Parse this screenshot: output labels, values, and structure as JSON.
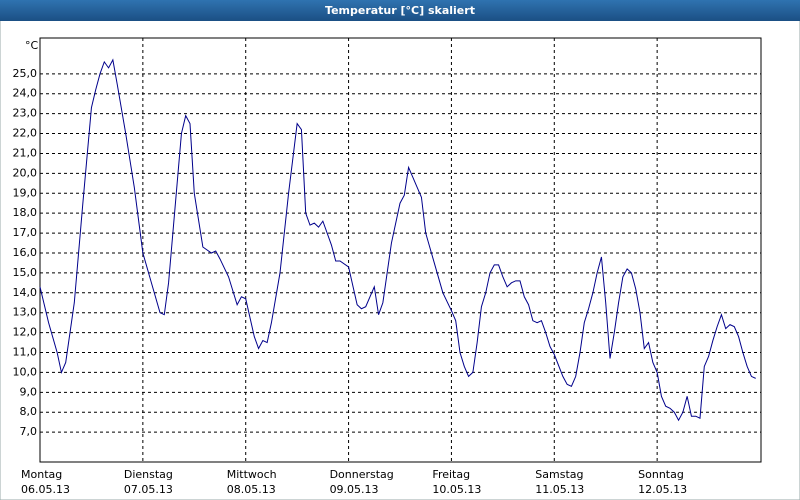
{
  "chart_data": {
    "type": "line",
    "title": "Temperatur [°C] skaliert",
    "y_label": "°C",
    "x": [
      0,
      2,
      4,
      5,
      6,
      8,
      10,
      12,
      13,
      14,
      15,
      16,
      17,
      18,
      20,
      22,
      24,
      26,
      28,
      29,
      30,
      32,
      33,
      34,
      35,
      36,
      38,
      40,
      41,
      42,
      44,
      46,
      47,
      48,
      50,
      51,
      52,
      53,
      54,
      56,
      58,
      60,
      61,
      62,
      63,
      64,
      65,
      66,
      68,
      69,
      70,
      72,
      74,
      75,
      76,
      78,
      79,
      80,
      82,
      84,
      85,
      86,
      87,
      88,
      89,
      90,
      92,
      94,
      96,
      97,
      98,
      99,
      100,
      101,
      102,
      103,
      104,
      105,
      106,
      107,
      108,
      109,
      110,
      111,
      112,
      113,
      114,
      115,
      116,
      117,
      118,
      119,
      120,
      122,
      123,
      124,
      125,
      126,
      127,
      128,
      129,
      130,
      131,
      132,
      133,
      134,
      135,
      136,
      137,
      138,
      139,
      140,
      141,
      142,
      143,
      144,
      145,
      146,
      147,
      148,
      149,
      150,
      151,
      152,
      153,
      154,
      155,
      156,
      157,
      158,
      159,
      160,
      161,
      162,
      163,
      164,
      165,
      166,
      167
    ],
    "values": [
      14.3,
      12.5,
      11.0,
      10.0,
      10.5,
      13.5,
      18.5,
      23.3,
      24.2,
      25.0,
      25.6,
      25.3,
      25.7,
      24.5,
      22.0,
      19.3,
      16.0,
      14.5,
      13.0,
      12.9,
      14.5,
      19.5,
      22.0,
      22.9,
      22.5,
      19.0,
      16.3,
      16.0,
      16.1,
      15.7,
      14.8,
      13.4,
      13.8,
      13.7,
      11.8,
      11.2,
      11.6,
      11.5,
      12.5,
      15.0,
      19.0,
      22.5,
      22.2,
      18.0,
      17.4,
      17.5,
      17.3,
      17.6,
      16.4,
      15.6,
      15.6,
      15.3,
      13.4,
      13.2,
      13.3,
      14.3,
      12.9,
      13.5,
      16.5,
      18.5,
      18.9,
      20.3,
      19.8,
      19.3,
      18.8,
      17.0,
      15.5,
      14.0,
      13.1,
      12.6,
      11.0,
      10.3,
      9.8,
      10.0,
      11.5,
      13.3,
      14.0,
      15.0,
      15.4,
      15.4,
      14.8,
      14.3,
      14.5,
      14.6,
      14.6,
      13.8,
      13.4,
      12.6,
      12.5,
      12.6,
      12.0,
      11.3,
      10.9,
      9.8,
      9.4,
      9.3,
      9.8,
      11.0,
      12.5,
      13.2,
      14.0,
      15.0,
      15.8,
      13.5,
      10.7,
      12.0,
      13.5,
      14.8,
      15.2,
      15.0,
      14.2,
      13.0,
      11.2,
      11.5,
      10.5,
      10.0,
      8.8,
      8.3,
      8.2,
      8.0,
      7.6,
      8.0,
      8.8,
      7.8,
      7.8,
      7.7,
      10.3,
      10.8,
      11.6,
      12.3,
      12.9,
      12.2,
      12.4,
      12.3,
      11.8,
      11.0,
      10.3,
      9.8,
      9.7
    ],
    "color": "#00008b",
    "grid": true,
    "xlim": [
      0,
      168
    ],
    "ylim": [
      5.5,
      26.8
    ],
    "xticks": [
      {
        "value": 0,
        "label": "Montag",
        "date": "06.05.13"
      },
      {
        "value": 24,
        "label": "Dienstag",
        "date": "07.05.13"
      },
      {
        "value": 48,
        "label": "Mittwoch",
        "date": "08.05.13"
      },
      {
        "value": 72,
        "label": "Donnerstag",
        "date": "09.05.13"
      },
      {
        "value": 96,
        "label": "Freitag",
        "date": "10.05.13"
      },
      {
        "value": 120,
        "label": "Samstag",
        "date": "11.05.13"
      },
      {
        "value": 144,
        "label": "Sonntag",
        "date": "12.05.13"
      }
    ],
    "yticks": [
      {
        "value": 7,
        "label": "7,0"
      },
      {
        "value": 8,
        "label": "8,0"
      },
      {
        "value": 9,
        "label": "9,0"
      },
      {
        "value": 10,
        "label": "10,0"
      },
      {
        "value": 11,
        "label": "11,0"
      },
      {
        "value": 12,
        "label": "12,0"
      },
      {
        "value": 13,
        "label": "13,0"
      },
      {
        "value": 14,
        "label": "14,0"
      },
      {
        "value": 15,
        "label": "15,0"
      },
      {
        "value": 16,
        "label": "16,0"
      },
      {
        "value": 17,
        "label": "17,0"
      },
      {
        "value": 18,
        "label": "18,0"
      },
      {
        "value": 19,
        "label": "19,0"
      },
      {
        "value": 20,
        "label": "20,0"
      },
      {
        "value": 21,
        "label": "21,0"
      },
      {
        "value": 22,
        "label": "22,0"
      },
      {
        "value": 23,
        "label": "23,0"
      },
      {
        "value": 24,
        "label": "24,0"
      },
      {
        "value": 25,
        "label": "25,0"
      }
    ]
  }
}
